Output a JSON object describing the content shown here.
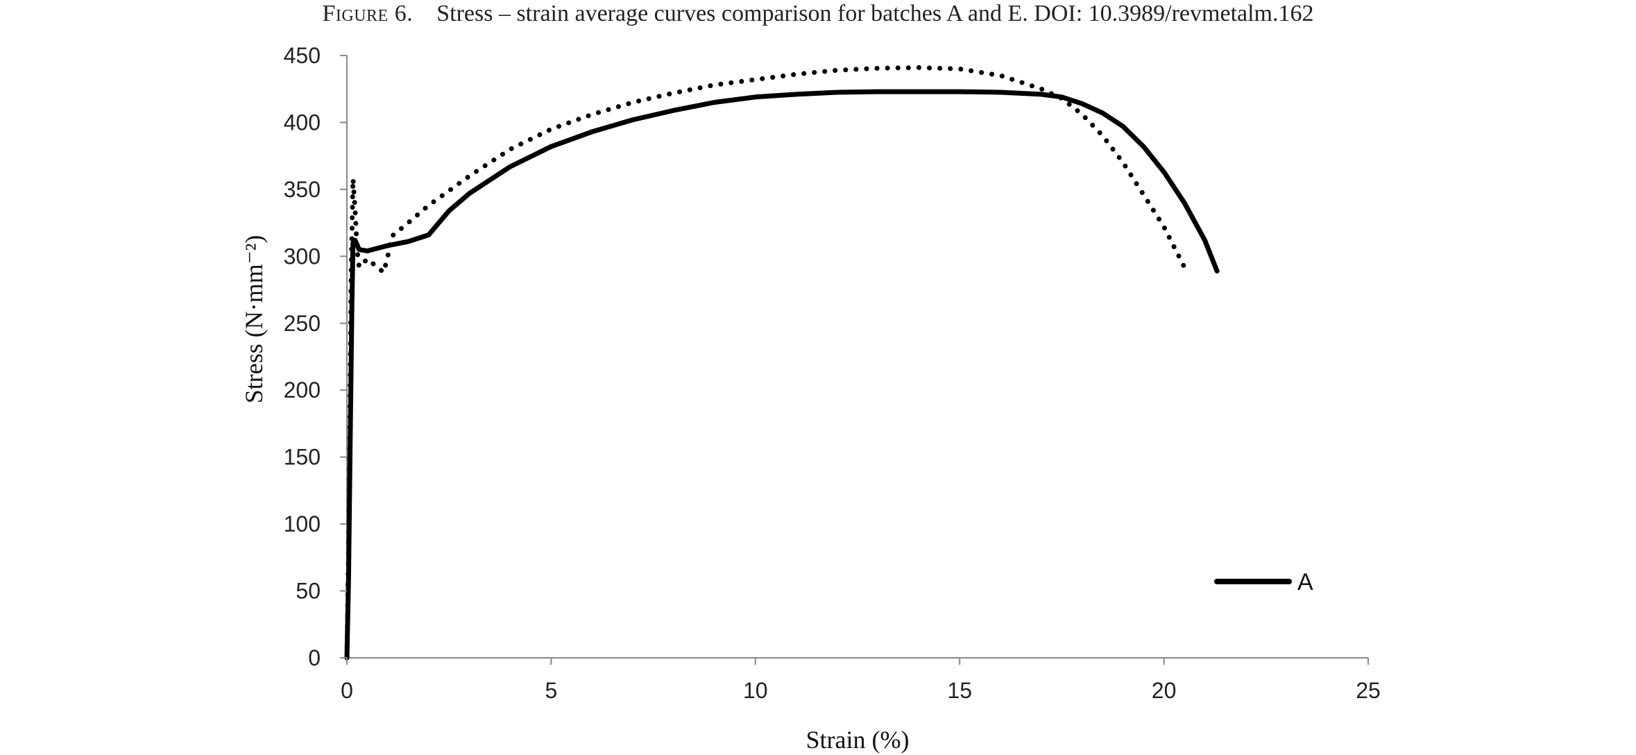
{
  "caption": {
    "label": "Figure 6.",
    "text": "Stress – strain average curves comparison for batches A and E.  DOI: 10.3989/revmetalm.162"
  },
  "chart_data": {
    "type": "line",
    "title": "",
    "xlabel": "Strain (%)",
    "ylabel": "Stress (N·mm⁻²)",
    "xlim": [
      0,
      25
    ],
    "ylim": [
      0,
      450
    ],
    "xticks": [
      0,
      5,
      10,
      15,
      20,
      25
    ],
    "yticks": [
      0,
      50,
      100,
      150,
      200,
      250,
      300,
      350,
      400,
      450
    ],
    "grid": false,
    "legend_position": "bottom-right",
    "colors": {
      "series": "#000000",
      "axis": "#888888"
    },
    "series": [
      {
        "name": "A",
        "style": "solid",
        "points": [
          [
            0,
            0
          ],
          [
            0.04,
            60
          ],
          [
            0.08,
            160
          ],
          [
            0.12,
            260
          ],
          [
            0.15,
            310
          ],
          [
            0.2,
            312
          ],
          [
            0.3,
            305
          ],
          [
            0.5,
            304
          ],
          [
            1.0,
            308
          ],
          [
            1.5,
            311
          ],
          [
            2.0,
            316
          ],
          [
            2.5,
            334
          ],
          [
            3,
            347
          ],
          [
            4,
            367
          ],
          [
            5,
            382
          ],
          [
            6,
            393
          ],
          [
            7,
            402
          ],
          [
            8,
            409
          ],
          [
            9,
            415
          ],
          [
            10,
            419
          ],
          [
            11,
            421
          ],
          [
            12,
            422.5
          ],
          [
            13,
            423
          ],
          [
            14,
            423
          ],
          [
            15,
            423
          ],
          [
            16,
            422.5
          ],
          [
            17,
            421
          ],
          [
            17.5,
            419
          ],
          [
            18,
            414
          ],
          [
            18.5,
            407
          ],
          [
            19,
            397
          ],
          [
            19.5,
            382
          ],
          [
            20,
            363
          ],
          [
            20.5,
            340
          ],
          [
            21,
            312
          ],
          [
            21.3,
            289
          ]
        ]
      },
      {
        "name": "",
        "style": "dotted",
        "points": [
          [
            0,
            0
          ],
          [
            0.05,
            100
          ],
          [
            0.08,
            200
          ],
          [
            0.1,
            280
          ],
          [
            0.15,
            358
          ],
          [
            0.2,
            335
          ],
          [
            0.25,
            305
          ],
          [
            0.3,
            292
          ],
          [
            0.5,
            298
          ],
          [
            0.7,
            293
          ],
          [
            0.9,
            288
          ],
          [
            1.0,
            300
          ],
          [
            1.1,
            315
          ],
          [
            1.5,
            325
          ],
          [
            2,
            338
          ],
          [
            3,
            360
          ],
          [
            4,
            380
          ],
          [
            5,
            395
          ],
          [
            6,
            406
          ],
          [
            7,
            415
          ],
          [
            8,
            422
          ],
          [
            9,
            428
          ],
          [
            10,
            432
          ],
          [
            11,
            436
          ],
          [
            12,
            439
          ],
          [
            13,
            440.5
          ],
          [
            14,
            441
          ],
          [
            15,
            440
          ],
          [
            16,
            435
          ],
          [
            17,
            425
          ],
          [
            17.5,
            418
          ],
          [
            18,
            406
          ],
          [
            18.5,
            390
          ],
          [
            19,
            370
          ],
          [
            19.5,
            346
          ],
          [
            20,
            322
          ],
          [
            20.5,
            292
          ]
        ]
      }
    ]
  }
}
